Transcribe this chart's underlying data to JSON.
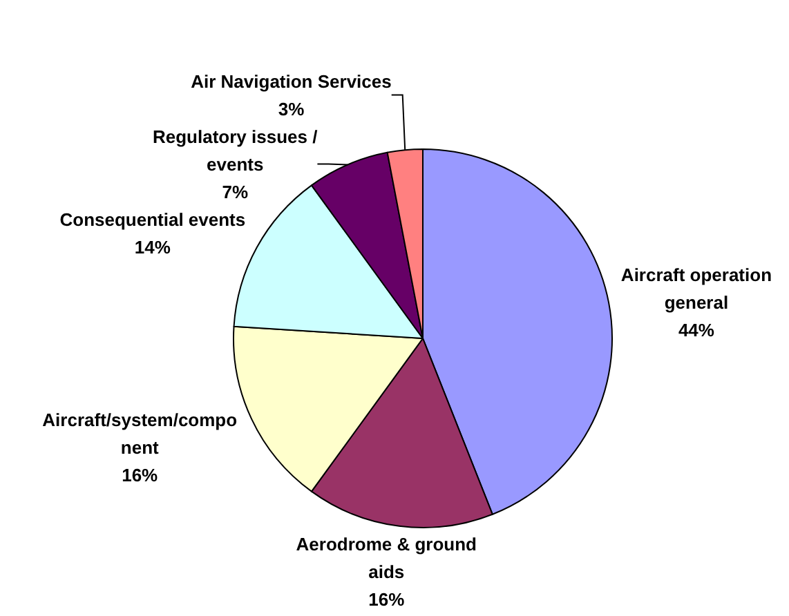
{
  "chart_data": {
    "type": "pie",
    "categories": [
      "Aircraft operation\ngeneral",
      "Aerodrome & ground\naids",
      "Aircraft/system/compo\nnent",
      "Consequential events",
      "Regulatory issues /\nevents",
      "Air Navigation Services"
    ],
    "values": [
      44,
      16,
      16,
      14,
      7,
      3
    ],
    "value_labels": [
      "44%",
      "16%",
      "16%",
      "14%",
      "7%",
      "3%"
    ],
    "colors": [
      "#9999ff",
      "#993366",
      "#ffffcc",
      "#ccffff",
      "#660066",
      "#ff8080"
    ]
  }
}
